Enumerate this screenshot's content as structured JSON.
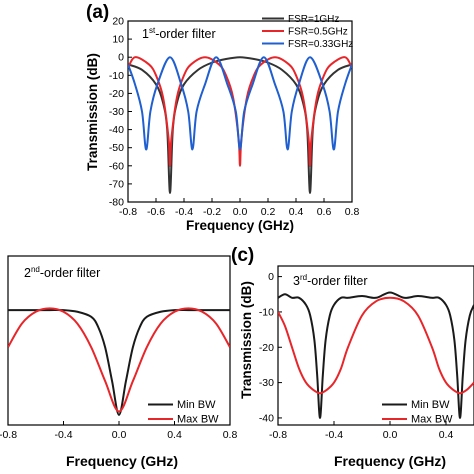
{
  "panels": [
    {
      "letter": "(a)",
      "order_base": "1",
      "order_sup": "st",
      "order_rest": "-order filter",
      "xlabel": "Frequency (GHz)",
      "ylabel": "Transmission (dB)"
    },
    {
      "letter": "",
      "order_base": "2",
      "order_sup": "nd",
      "order_rest": "-order filter",
      "xlabel": "Frequency (GHz)",
      "ylabel": ""
    },
    {
      "letter": "(c)",
      "order_base": "3",
      "order_sup": "rd",
      "order_rest": "-order filter",
      "xlabel": "Frequency (GHz)",
      "ylabel": "Transmission (dB)"
    }
  ],
  "chart_data": [
    {
      "type": "line",
      "title": "1st-order filter",
      "xlabel": "Frequency (GHz)",
      "ylabel": "Transmission (dB)",
      "xlim": [
        -0.8,
        0.8
      ],
      "ylim": [
        -80,
        20
      ],
      "xticks": [
        -0.8,
        -0.6,
        -0.4,
        -0.2,
        0.0,
        0.2,
        0.4,
        0.6,
        0.8
      ],
      "xtick_labels": [
        "-0.8",
        "-0.6",
        "-0.4",
        "-0.2",
        "0.0",
        "0.2",
        "0.4",
        "0.6",
        "0.8"
      ],
      "yticks": [
        20,
        10,
        0,
        -10,
        -20,
        -30,
        -40,
        -50,
        -60,
        -70,
        -80
      ],
      "ytick_labels": [
        "20",
        "10",
        "0",
        "-10",
        "-20",
        "-30",
        "-40",
        "-50",
        "-60",
        "-70",
        "-80"
      ],
      "legend_position": "top-right",
      "series": [
        {
          "name": "FSR=1GHz",
          "color": "#333333",
          "x": [
            -0.8,
            -0.7,
            -0.6,
            -0.55,
            -0.52,
            -0.5,
            -0.48,
            -0.45,
            -0.4,
            -0.3,
            -0.2,
            -0.1,
            0.0,
            0.1,
            0.2,
            0.3,
            0.4,
            0.45,
            0.48,
            0.5,
            0.52,
            0.55,
            0.6,
            0.7,
            0.8
          ],
          "y": [
            -4,
            -7,
            -15,
            -25,
            -40,
            -75,
            -40,
            -25,
            -15,
            -7,
            -3,
            -1,
            0,
            -1,
            -3,
            -7,
            -15,
            -25,
            -40,
            -75,
            -40,
            -25,
            -15,
            -7,
            -4
          ]
        },
        {
          "name": "FSR=0.5GHz",
          "color": "#e8262a",
          "x": [
            -0.8,
            -0.75,
            -0.65,
            -0.6,
            -0.55,
            -0.51,
            -0.5,
            -0.49,
            -0.45,
            -0.4,
            -0.35,
            -0.25,
            -0.15,
            -0.1,
            -0.05,
            -0.01,
            0.0,
            0.01,
            0.05,
            0.1,
            0.15,
            0.25,
            0.35,
            0.4,
            0.45,
            0.49,
            0.5,
            0.51,
            0.55,
            0.6,
            0.65,
            0.75,
            0.8
          ],
          "y": [
            -6,
            0,
            -4,
            -10,
            -22,
            -45,
            -60,
            -45,
            -22,
            -10,
            -4,
            0,
            -4,
            -10,
            -22,
            -45,
            -60,
            -45,
            -22,
            -10,
            -4,
            0,
            -4,
            -10,
            -22,
            -45,
            -60,
            -45,
            -22,
            -10,
            -4,
            0,
            -6
          ]
        },
        {
          "name": "FSR=0.33GHz",
          "color": "#1f5fd0",
          "x": [
            -0.8,
            -0.75,
            -0.7,
            -0.67,
            -0.64,
            -0.59,
            -0.5,
            -0.42,
            -0.37,
            -0.34,
            -0.31,
            -0.25,
            -0.17,
            -0.09,
            -0.03,
            0.0,
            0.03,
            0.09,
            0.17,
            0.25,
            0.31,
            0.34,
            0.37,
            0.42,
            0.5,
            0.59,
            0.64,
            0.67,
            0.7,
            0.75,
            0.8
          ],
          "y": [
            -4,
            -15,
            -30,
            -51,
            -30,
            -15,
            0,
            -15,
            -30,
            -51,
            -30,
            -15,
            0,
            -15,
            -30,
            -51,
            -30,
            -15,
            0,
            -15,
            -30,
            -51,
            -30,
            -15,
            0,
            -15,
            -30,
            -51,
            -30,
            -15,
            -4
          ]
        }
      ]
    },
    {
      "type": "line",
      "title": "2nd-order filter",
      "xlabel": "Frequency (GHz)",
      "ylabel": "",
      "xlim": [
        -0.8,
        0.8
      ],
      "ylim": [
        -40,
        10
      ],
      "xticks": [
        -0.8,
        -0.4,
        0.0,
        0.4,
        0.8
      ],
      "xtick_labels": [
        "-0.8",
        "-0.4",
        "0.0",
        "0.4",
        "0.8"
      ],
      "legend_position": "bottom-right",
      "series": [
        {
          "name": "Min BW",
          "color": "#1a1a1a",
          "x": [
            -0.8,
            -0.7,
            -0.6,
            -0.5,
            -0.4,
            -0.3,
            -0.2,
            -0.15,
            -0.1,
            -0.05,
            0.0,
            0.05,
            0.1,
            0.15,
            0.2,
            0.3,
            0.4,
            0.5,
            0.6,
            0.7,
            0.8
          ],
          "y": [
            -6,
            -6,
            -6,
            -6,
            -6,
            -6.5,
            -8,
            -11,
            -17,
            -27,
            -37,
            -27,
            -17,
            -11,
            -8,
            -6.5,
            -6,
            -6,
            -6,
            -6,
            -6
          ]
        },
        {
          "name": "Max BW",
          "color": "#e8262a",
          "x": [
            -0.8,
            -0.7,
            -0.6,
            -0.5,
            -0.4,
            -0.3,
            -0.2,
            -0.1,
            0.0,
            0.1,
            0.2,
            0.3,
            0.4,
            0.5,
            0.6,
            0.7,
            0.8
          ],
          "y": [
            -17,
            -10,
            -6.5,
            -5.5,
            -6.5,
            -10,
            -17,
            -27,
            -36,
            -27,
            -17,
            -10,
            -6.5,
            -5.5,
            -6.5,
            -10,
            -17
          ]
        }
      ]
    },
    {
      "type": "line",
      "title": "3rd-order filter",
      "xlabel": "Frequency (GHz)",
      "ylabel": "Transmission (dB)",
      "xlim": [
        -0.8,
        0.6
      ],
      "ylim": [
        -42,
        3
      ],
      "xticks": [
        -0.8,
        -0.4,
        0.0,
        0.4
      ],
      "xtick_labels": [
        "-0.8",
        "-0.4",
        "0.0",
        "0.4"
      ],
      "yticks": [
        0,
        -10,
        -20,
        -30,
        -40
      ],
      "ytick_labels": [
        "0",
        "-10",
        "-20",
        "-30",
        "-40"
      ],
      "legend_position": "bottom-right",
      "series": [
        {
          "name": "Min BW",
          "color": "#1a1a1a",
          "x": [
            -0.8,
            -0.75,
            -0.7,
            -0.65,
            -0.6,
            -0.57,
            -0.54,
            -0.52,
            -0.5,
            -0.48,
            -0.46,
            -0.43,
            -0.4,
            -0.35,
            -0.3,
            -0.2,
            -0.1,
            0.0,
            0.1,
            0.2,
            0.3,
            0.35,
            0.4,
            0.43,
            0.46,
            0.48,
            0.5,
            0.52,
            0.54,
            0.57,
            0.6
          ],
          "y": [
            -6,
            -5,
            -6,
            -6,
            -8,
            -11,
            -18,
            -28,
            -40,
            -28,
            -18,
            -11,
            -8,
            -6,
            -6,
            -5.5,
            -6,
            -4.5,
            -6,
            -5.5,
            -6,
            -6,
            -8,
            -11,
            -18,
            -28,
            -40,
            -28,
            -18,
            -11,
            -8
          ]
        },
        {
          "name": "Max BW",
          "color": "#e8262a",
          "x": [
            -0.8,
            -0.75,
            -0.7,
            -0.65,
            -0.6,
            -0.55,
            -0.5,
            -0.45,
            -0.4,
            -0.35,
            -0.3,
            -0.2,
            -0.1,
            0.0,
            0.1,
            0.2,
            0.3,
            0.35,
            0.4,
            0.45,
            0.5,
            0.55,
            0.6
          ],
          "y": [
            -10,
            -14,
            -20,
            -26,
            -30,
            -32,
            -33,
            -32,
            -30,
            -26,
            -20,
            -11,
            -7,
            -6,
            -7,
            -11,
            -20,
            -26,
            -30,
            -32,
            -33,
            -32,
            -30
          ]
        }
      ]
    }
  ]
}
